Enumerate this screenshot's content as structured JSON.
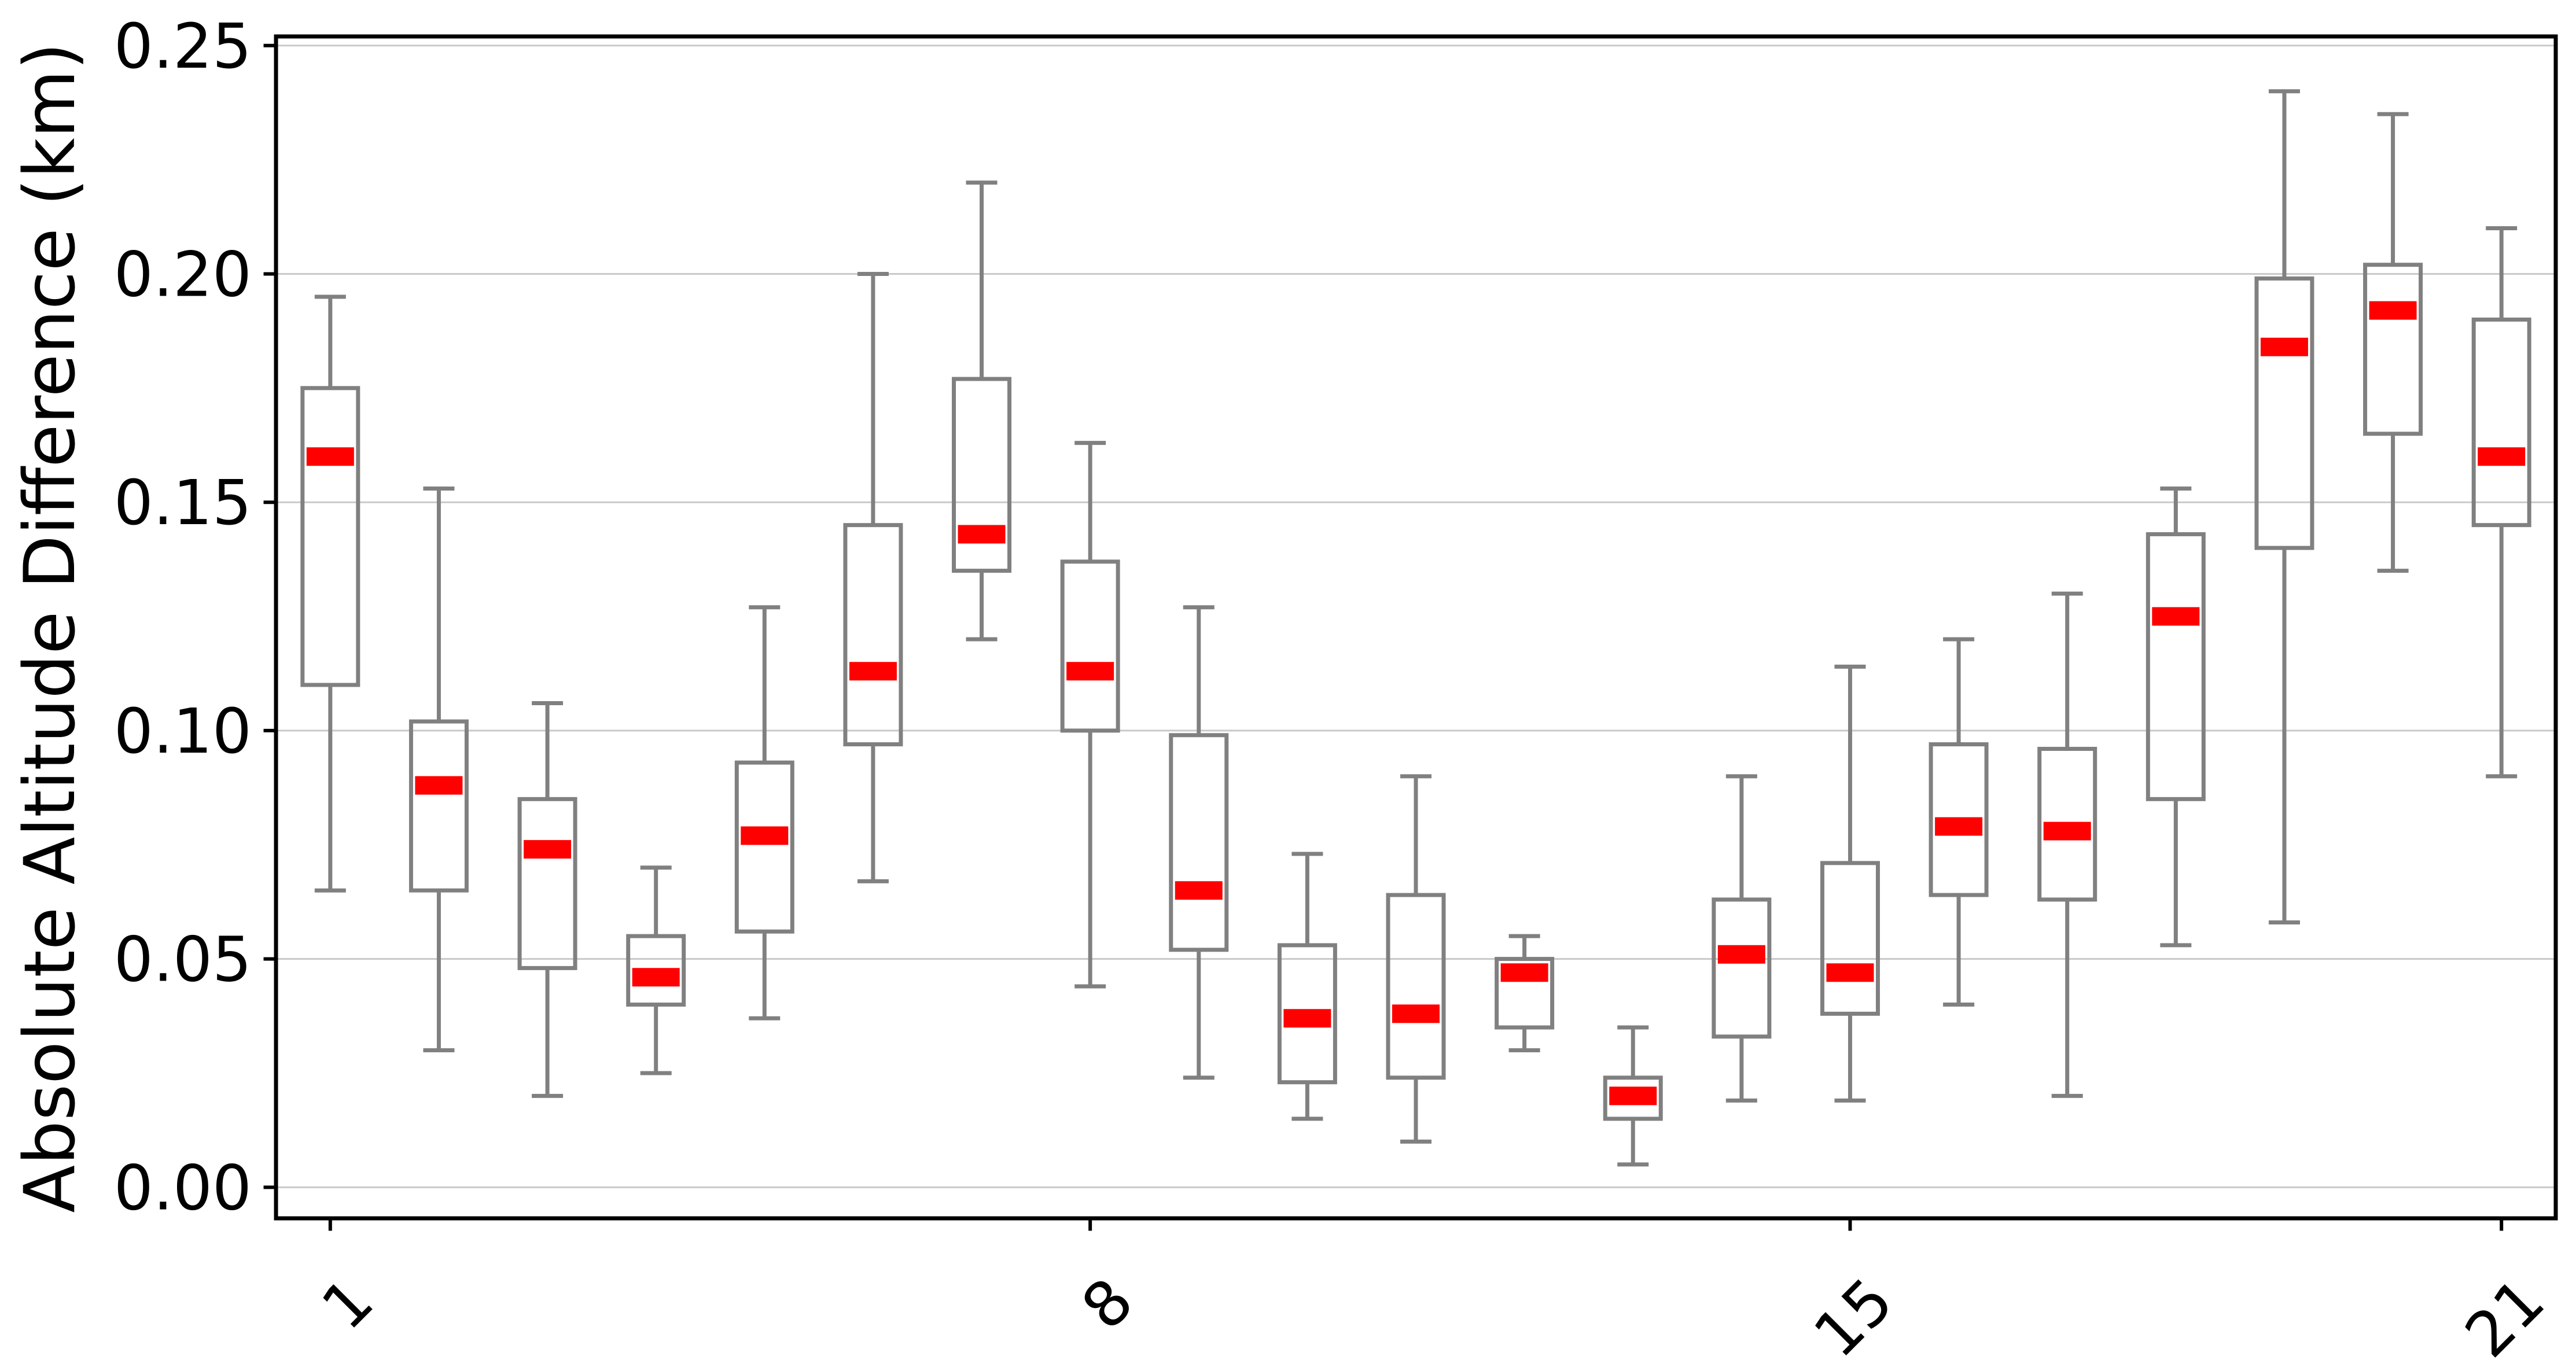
{
  "chart_data": {
    "type": "box",
    "title": "",
    "xlabel": "",
    "ylabel": "Absolute Altitude Difference (km)",
    "ylim": [
      -0.0068,
      0.252
    ],
    "xlim": [
      0.5,
      21.5
    ],
    "grid": "horizontal-only",
    "legend": "none",
    "yticks": [
      {
        "value": 0.0,
        "label": "0.00"
      },
      {
        "value": 0.05,
        "label": "0.05"
      },
      {
        "value": 0.1,
        "label": "0.10"
      },
      {
        "value": 0.15,
        "label": "0.15"
      },
      {
        "value": 0.2,
        "label": "0.20"
      },
      {
        "value": 0.25,
        "label": "0.25"
      }
    ],
    "xticks": [
      {
        "pos": 1,
        "label": "1"
      },
      {
        "pos": 8,
        "label": "8"
      },
      {
        "pos": 15,
        "label": "15"
      },
      {
        "pos": 21,
        "label": "21"
      }
    ],
    "xtick_label_rotation_deg": 45,
    "boxes": [
      {
        "pos": 1,
        "whislo": 0.065,
        "q1": 0.11,
        "med": 0.16,
        "q3": 0.175,
        "whishi": 0.195
      },
      {
        "pos": 2,
        "whislo": 0.03,
        "q1": 0.065,
        "med": 0.088,
        "q3": 0.102,
        "whishi": 0.153
      },
      {
        "pos": 3,
        "whislo": 0.02,
        "q1": 0.048,
        "med": 0.074,
        "q3": 0.085,
        "whishi": 0.106
      },
      {
        "pos": 4,
        "whislo": 0.025,
        "q1": 0.04,
        "med": 0.046,
        "q3": 0.055,
        "whishi": 0.07
      },
      {
        "pos": 5,
        "whislo": 0.037,
        "q1": 0.056,
        "med": 0.077,
        "q3": 0.093,
        "whishi": 0.127
      },
      {
        "pos": 6,
        "whislo": 0.067,
        "q1": 0.097,
        "med": 0.113,
        "q3": 0.145,
        "whishi": 0.2
      },
      {
        "pos": 7,
        "whislo": 0.12,
        "q1": 0.135,
        "med": 0.143,
        "q3": 0.177,
        "whishi": 0.22
      },
      {
        "pos": 8,
        "whislo": 0.044,
        "q1": 0.1,
        "med": 0.113,
        "q3": 0.137,
        "whishi": 0.163
      },
      {
        "pos": 9,
        "whislo": 0.024,
        "q1": 0.052,
        "med": 0.065,
        "q3": 0.099,
        "whishi": 0.127
      },
      {
        "pos": 10,
        "whislo": 0.015,
        "q1": 0.023,
        "med": 0.037,
        "q3": 0.053,
        "whishi": 0.073
      },
      {
        "pos": 11,
        "whislo": 0.01,
        "q1": 0.024,
        "med": 0.038,
        "q3": 0.064,
        "whishi": 0.09
      },
      {
        "pos": 12,
        "whislo": 0.03,
        "q1": 0.035,
        "med": 0.047,
        "q3": 0.05,
        "whishi": 0.055
      },
      {
        "pos": 13,
        "whislo": 0.005,
        "q1": 0.015,
        "med": 0.02,
        "q3": 0.024,
        "whishi": 0.035
      },
      {
        "pos": 14,
        "whislo": 0.019,
        "q1": 0.033,
        "med": 0.051,
        "q3": 0.063,
        "whishi": 0.09
      },
      {
        "pos": 15,
        "whislo": 0.019,
        "q1": 0.038,
        "med": 0.047,
        "q3": 0.071,
        "whishi": 0.114
      },
      {
        "pos": 16,
        "whislo": 0.04,
        "q1": 0.064,
        "med": 0.079,
        "q3": 0.097,
        "whishi": 0.12
      },
      {
        "pos": 17,
        "whislo": 0.02,
        "q1": 0.063,
        "med": 0.078,
        "q3": 0.096,
        "whishi": 0.13
      },
      {
        "pos": 18,
        "whislo": 0.053,
        "q1": 0.085,
        "med": 0.125,
        "q3": 0.143,
        "whishi": 0.153
      },
      {
        "pos": 19,
        "whislo": 0.058,
        "q1": 0.14,
        "med": 0.184,
        "q3": 0.199,
        "whishi": 0.24
      },
      {
        "pos": 20,
        "whislo": 0.135,
        "q1": 0.165,
        "med": 0.192,
        "q3": 0.202,
        "whishi": 0.235
      },
      {
        "pos": 21,
        "whislo": 0.09,
        "q1": 0.145,
        "med": 0.16,
        "q3": 0.19,
        "whishi": 0.21
      }
    ],
    "colors": {
      "box_edge": "#808080",
      "whisker": "#808080",
      "cap": "#808080",
      "median": "#ff0000",
      "grid": "#c9c9c9",
      "spine": "#000000",
      "tick": "#000000",
      "text": "#000000",
      "background": "#ffffff"
    }
  }
}
